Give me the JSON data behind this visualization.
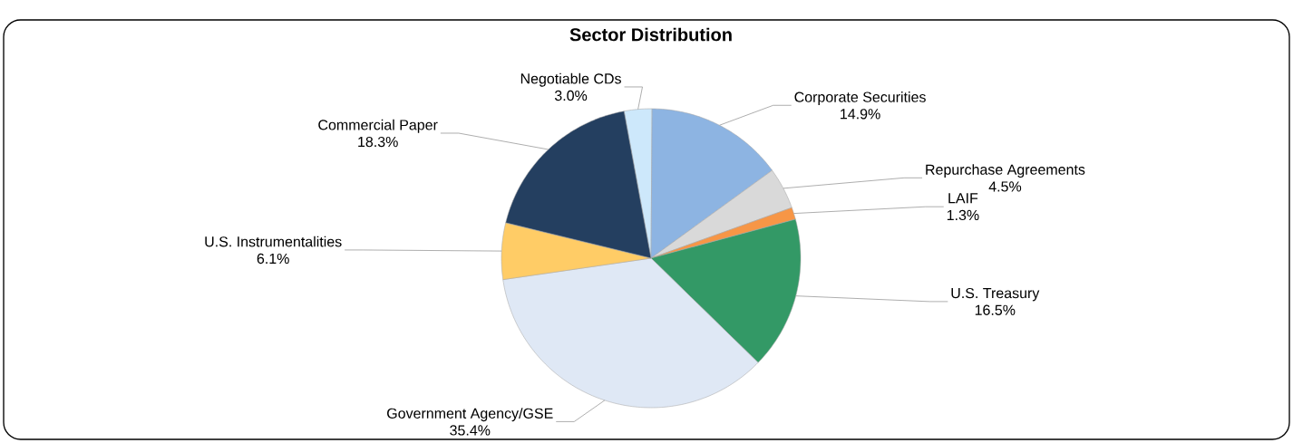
{
  "chart_data": {
    "type": "pie",
    "title": "Sector Distribution",
    "categories": [
      "Negotiable CDs",
      "Corporate Securities",
      "Repurchase Agreements",
      "LAIF",
      "U.S. Treasury",
      "Government Agency/GSE",
      "U.S. Instrumentalities",
      "Commercial Paper"
    ],
    "values": [
      3.0,
      14.9,
      4.5,
      1.3,
      16.5,
      35.4,
      6.1,
      18.3
    ],
    "value_labels": [
      "3.0%",
      "14.9%",
      "4.5%",
      "1.3%",
      "16.5%",
      "35.4%",
      "6.1%",
      "18.3%"
    ],
    "colors": [
      "#cde8fb",
      "#8db4e2",
      "#d9d9d9",
      "#f79646",
      "#339966",
      "#dfe8f5",
      "#ffcc66",
      "#243f60"
    ]
  }
}
